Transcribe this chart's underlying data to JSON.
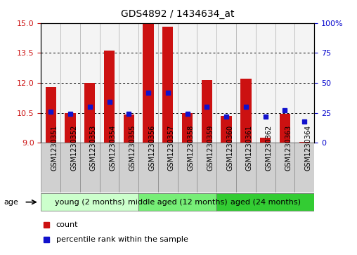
{
  "title": "GDS4892 / 1434634_at",
  "samples": [
    "GSM1230351",
    "GSM1230352",
    "GSM1230353",
    "GSM1230354",
    "GSM1230355",
    "GSM1230356",
    "GSM1230357",
    "GSM1230358",
    "GSM1230359",
    "GSM1230360",
    "GSM1230361",
    "GSM1230362",
    "GSM1230363",
    "GSM1230364"
  ],
  "counts": [
    11.8,
    10.5,
    12.0,
    13.6,
    10.4,
    15.0,
    14.8,
    10.5,
    12.15,
    10.35,
    12.2,
    9.25,
    10.45,
    9.05
  ],
  "percentiles": [
    26,
    24,
    30,
    34,
    24,
    42,
    42,
    24,
    30,
    22,
    30,
    22,
    27,
    18
  ],
  "ylim_left": [
    9,
    15
  ],
  "ylim_right": [
    0,
    100
  ],
  "yticks_left": [
    9,
    10.5,
    12,
    13.5,
    15
  ],
  "yticks_right": [
    0,
    25,
    50,
    75,
    100
  ],
  "bar_color": "#cc1111",
  "percentile_color": "#1111cc",
  "bar_width": 0.55,
  "groups": [
    {
      "label": "young (2 months)",
      "indices": [
        0,
        1,
        2,
        3,
        4
      ],
      "color": "#ccffcc"
    },
    {
      "label": "middle aged (12 months)",
      "indices": [
        5,
        6,
        7,
        8
      ],
      "color": "#77ee77"
    },
    {
      "label": "aged (24 months)",
      "indices": [
        9,
        10,
        11,
        12,
        13
      ],
      "color": "#33cc33"
    }
  ],
  "age_label": "age",
  "legend_count_label": "count",
  "legend_percentile_label": "percentile rank within the sample",
  "background_color": "#ffffff",
  "ticklabel_bg": "#cccccc",
  "xlabel_color": "#cc1111",
  "ylabel_right_color": "#0000cc",
  "title_fontsize": 10,
  "tick_fontsize": 7,
  "group_fontsize": 8,
  "legend_fontsize": 8
}
